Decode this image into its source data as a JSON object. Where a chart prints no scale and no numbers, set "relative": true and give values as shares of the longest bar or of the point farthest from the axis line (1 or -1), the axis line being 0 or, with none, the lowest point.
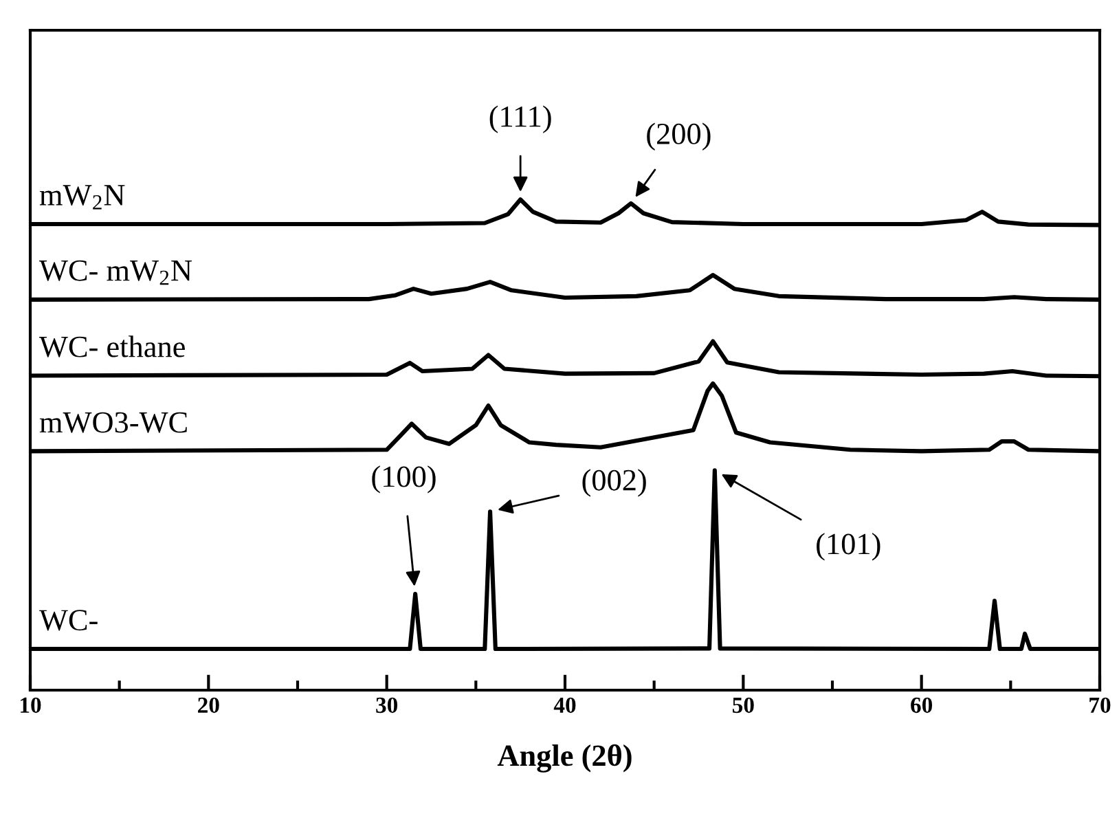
{
  "chart_data": {
    "type": "line",
    "relative": true,
    "xlabel": "Angle (2θ)",
    "xlim": [
      10,
      70
    ],
    "xticks": [
      10,
      {
        "value": 15,
        "label": null
      },
      20,
      {
        "value": 25,
        "label": null
      },
      30,
      {
        "value": 35,
        "label": null
      },
      40,
      {
        "value": 45,
        "label": null
      },
      50,
      {
        "value": 55,
        "label": null
      },
      60,
      {
        "value": 65,
        "label": null
      },
      70
    ],
    "tick_labels": "x",
    "grid": false,
    "legend": false,
    "line_style": "solid",
    "marker": "none",
    "series": [
      {
        "name": "mW$_{2}$N",
        "color": "#000000",
        "x": [
          10,
          30,
          35.5,
          36.8,
          37.5,
          38.2,
          39.5,
          42,
          43.0,
          43.7,
          44.4,
          46,
          50,
          60,
          62.5,
          63.4,
          64.3,
          66,
          70
        ],
        "values": [
          0.95,
          0.95,
          0.952,
          0.97,
          1.0,
          0.975,
          0.955,
          0.953,
          0.972,
          0.992,
          0.972,
          0.954,
          0.95,
          0.95,
          0.958,
          0.975,
          0.955,
          0.949,
          0.948
        ]
      },
      {
        "name": "WC- mW$_{2}$N",
        "color": "#000000",
        "x": [
          10,
          29,
          30.5,
          31.5,
          32.5,
          34.5,
          35.8,
          37,
          40,
          44,
          47,
          48.3,
          49.5,
          52,
          58,
          63.5,
          65.2,
          67,
          70
        ],
        "values": [
          0.796,
          0.797,
          0.805,
          0.818,
          0.808,
          0.818,
          0.832,
          0.815,
          0.8,
          0.803,
          0.815,
          0.846,
          0.818,
          0.803,
          0.797,
          0.797,
          0.801,
          0.797,
          0.796
        ]
      },
      {
        "name": "WC- ethane",
        "color": "#000000",
        "x": [
          10,
          30,
          31.3,
          32,
          34.8,
          35.7,
          36.6,
          40,
          45,
          47.5,
          48.3,
          49.1,
          52,
          60,
          63.5,
          65.1,
          67,
          70
        ],
        "values": [
          0.641,
          0.643,
          0.667,
          0.65,
          0.655,
          0.683,
          0.655,
          0.645,
          0.646,
          0.67,
          0.711,
          0.668,
          0.648,
          0.643,
          0.645,
          0.65,
          0.641,
          0.64
        ]
      },
      {
        "name": "mWO3-WC",
        "color": "#000000",
        "x": [
          10,
          30,
          30.8,
          31.4,
          32.2,
          33.5,
          35.0,
          35.7,
          36.4,
          38,
          39.5,
          42,
          47.2,
          48.0,
          48.3,
          48.8,
          49.6,
          51.5,
          56,
          60,
          63.8,
          64.5,
          65.2,
          66,
          70
        ],
        "values": [
          0.487,
          0.49,
          0.52,
          0.543,
          0.515,
          0.502,
          0.54,
          0.58,
          0.54,
          0.505,
          0.5,
          0.495,
          0.53,
          0.61,
          0.625,
          0.6,
          0.525,
          0.505,
          0.49,
          0.487,
          0.49,
          0.507,
          0.507,
          0.49,
          0.487
        ]
      },
      {
        "name": "WC-",
        "color": "#000000",
        "x": [
          10,
          31.3,
          31.6,
          31.9,
          35.5,
          35.8,
          36.1,
          48.1,
          48.4,
          48.7,
          63.8,
          64.1,
          64.4,
          65.6,
          65.8,
          66.1,
          70
        ],
        "values": [
          0.084,
          0.084,
          0.196,
          0.084,
          0.084,
          0.364,
          0.084,
          0.085,
          0.448,
          0.085,
          0.084,
          0.182,
          0.084,
          0.084,
          0.115,
          0.084,
          0.084
        ]
      }
    ],
    "annotations": [
      {
        "text": "(111)",
        "x": 37.5,
        "y": 1.0
      },
      {
        "text": "(200)",
        "x": 43.7,
        "y": 0.992
      },
      {
        "text": "(100)",
        "x": 31.6,
        "y": 0.196
      },
      {
        "text": "(002)",
        "x": 35.8,
        "y": 0.364
      },
      {
        "text": "(101)",
        "x": 48.4,
        "y": 0.448
      }
    ]
  }
}
